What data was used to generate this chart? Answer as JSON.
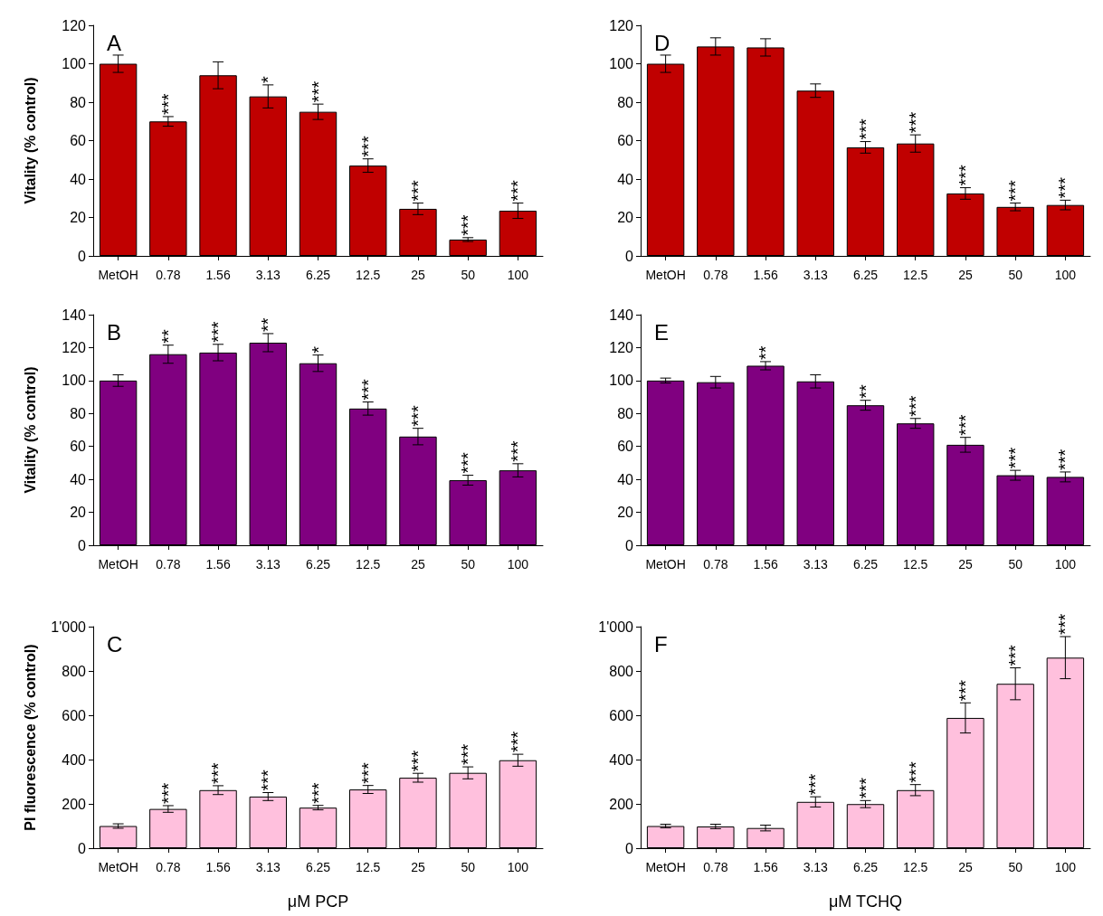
{
  "chart_data": [
    {
      "type": "bar",
      "title": "A",
      "ylabel": "Vitality (% control)",
      "categories": [
        "MetOH",
        "0.78",
        "1.56",
        "3.13",
        "6.25",
        "12.5",
        "25",
        "50",
        "100"
      ],
      "values": [
        100,
        70,
        94,
        83,
        75,
        47,
        24.5,
        8.5,
        23.5
      ],
      "errors": [
        4.5,
        2.5,
        7,
        6,
        4,
        3.5,
        3,
        1,
        4
      ],
      "color": "#c00000",
      "ylim": [
        0,
        120
      ],
      "yticks": [
        0,
        20,
        40,
        60,
        80,
        100,
        120
      ],
      "annotations": [
        {
          "text": "***",
          "x": "0.78",
          "y": 72.5
        },
        {
          "text": "*",
          "x": "3.13",
          "y": 89
        },
        {
          "text": "***",
          "x": "6.25",
          "y": 79
        },
        {
          "text": "***",
          "x": "12.5",
          "y": 50.5
        },
        {
          "text": "***",
          "x": "25",
          "y": 27.5
        },
        {
          "text": "***",
          "x": "50",
          "y": 9.5
        },
        {
          "text": "***",
          "x": "100",
          "y": 27.5
        }
      ]
    },
    {
      "type": "bar",
      "title": "D",
      "categories": [
        "MetOH",
        "0.78",
        "1.56",
        "3.13",
        "6.25",
        "12.5",
        "25",
        "50",
        "100"
      ],
      "values": [
        100,
        109,
        108.5,
        86,
        56.5,
        58.5,
        32.5,
        25.5,
        26.5
      ],
      "errors": [
        4.5,
        4.5,
        4.5,
        3.5,
        3,
        4.5,
        3,
        2,
        2.5
      ],
      "color": "#c00000",
      "ylim": [
        0,
        120
      ],
      "yticks": [
        0,
        20,
        40,
        60,
        80,
        100,
        120
      ],
      "annotations": [
        {
          "text": "***",
          "x": "6.25",
          "y": 59.5
        },
        {
          "text": "***",
          "x": "12.5",
          "y": 63
        },
        {
          "text": "***",
          "x": "25",
          "y": 35.5
        },
        {
          "text": "***",
          "x": "50",
          "y": 27.5
        },
        {
          "text": "***",
          "x": "100",
          "y": 29
        }
      ]
    },
    {
      "type": "bar",
      "title": "B",
      "ylabel": "Vitality (% control)",
      "categories": [
        "MetOH",
        "0.78",
        "1.56",
        "3.13",
        "6.25",
        "12.5",
        "25",
        "50",
        "100"
      ],
      "values": [
        100,
        116,
        117,
        123,
        110.5,
        83,
        66,
        39.5,
        45.5
      ],
      "errors": [
        3.5,
        5.5,
        5,
        5.5,
        5,
        4,
        5,
        3,
        4
      ],
      "color": "#800080",
      "ylim": [
        0,
        140
      ],
      "yticks": [
        0,
        20,
        40,
        60,
        80,
        100,
        120,
        140
      ],
      "annotations": [
        {
          "text": "**",
          "x": "0.78",
          "y": 121.5
        },
        {
          "text": "***",
          "x": "1.56",
          "y": 122
        },
        {
          "text": "**",
          "x": "3.13",
          "y": 128.5
        },
        {
          "text": "*",
          "x": "6.25",
          "y": 115.5
        },
        {
          "text": "***",
          "x": "12.5",
          "y": 87
        },
        {
          "text": "***",
          "x": "25",
          "y": 71
        },
        {
          "text": "***",
          "x": "50",
          "y": 42.5
        },
        {
          "text": "***",
          "x": "100",
          "y": 49.5
        }
      ]
    },
    {
      "type": "bar",
      "title": "E",
      "categories": [
        "MetOH",
        "0.78",
        "1.56",
        "3.13",
        "6.25",
        "12.5",
        "25",
        "50",
        "100"
      ],
      "values": [
        100,
        99,
        109,
        99.5,
        85,
        74,
        61,
        42.5,
        41.5
      ],
      "errors": [
        1.5,
        3.5,
        2.5,
        4,
        3,
        3,
        4.5,
        3,
        3
      ],
      "color": "#800080",
      "ylim": [
        0,
        140
      ],
      "yticks": [
        0,
        20,
        40,
        60,
        80,
        100,
        120,
        140
      ],
      "annotations": [
        {
          "text": "**",
          "x": "1.56",
          "y": 111.5
        },
        {
          "text": "**",
          "x": "6.25",
          "y": 88
        },
        {
          "text": "***",
          "x": "12.5",
          "y": 77
        },
        {
          "text": "***",
          "x": "25",
          "y": 65.5
        },
        {
          "text": "***",
          "x": "50",
          "y": 45.5
        },
        {
          "text": "***",
          "x": "100",
          "y": 44.5
        }
      ]
    },
    {
      "type": "bar",
      "title": "C",
      "ylabel": "PI fluorescence (% control)",
      "xlabel": "μM PCP",
      "categories": [
        "MetOH",
        "0.78",
        "1.56",
        "3.13",
        "6.25",
        "12.5",
        "25",
        "50",
        "100"
      ],
      "values": [
        100,
        177,
        262,
        233,
        183,
        265,
        318,
        340,
        397
      ],
      "errors": [
        10,
        15,
        20,
        18,
        10,
        18,
        20,
        27,
        27
      ],
      "color": "#ffc0dd",
      "ylim": [
        0,
        1000
      ],
      "yticks": [
        0,
        200,
        400,
        600,
        800,
        {
          "value": 1000,
          "label": "1'000"
        }
      ],
      "annotations": [
        {
          "text": "***",
          "x": "0.78",
          "y": 192
        },
        {
          "text": "***",
          "x": "1.56",
          "y": 282
        },
        {
          "text": "***",
          "x": "3.13",
          "y": 251
        },
        {
          "text": "***",
          "x": "6.25",
          "y": 193
        },
        {
          "text": "***",
          "x": "12.5",
          "y": 283
        },
        {
          "text": "***",
          "x": "25",
          "y": 338
        },
        {
          "text": "***",
          "x": "50",
          "y": 367
        },
        {
          "text": "***",
          "x": "100",
          "y": 424
        }
      ]
    },
    {
      "type": "bar",
      "title": "F",
      "xlabel": "μM TCHQ",
      "categories": [
        "MetOH",
        "0.78",
        "1.56",
        "3.13",
        "6.25",
        "12.5",
        "25",
        "50",
        "100"
      ],
      "values": [
        100,
        98,
        91,
        209,
        199,
        262,
        588,
        742,
        860
      ],
      "errors": [
        8,
        10,
        13,
        23,
        16,
        25,
        68,
        72,
        95
      ],
      "color": "#ffc0dd",
      "ylim": [
        0,
        1000
      ],
      "yticks": [
        0,
        200,
        400,
        600,
        800,
        {
          "value": 1000,
          "label": "1'000"
        }
      ],
      "annotations": [
        {
          "text": "***",
          "x": "3.13",
          "y": 232
        },
        {
          "text": "***",
          "x": "6.25",
          "y": 215
        },
        {
          "text": "***",
          "x": "12.5",
          "y": 287
        },
        {
          "text": "***",
          "x": "25",
          "y": 656
        },
        {
          "text": "***",
          "x": "50",
          "y": 814
        },
        {
          "text": "***",
          "x": "100",
          "y": 955
        }
      ]
    }
  ]
}
